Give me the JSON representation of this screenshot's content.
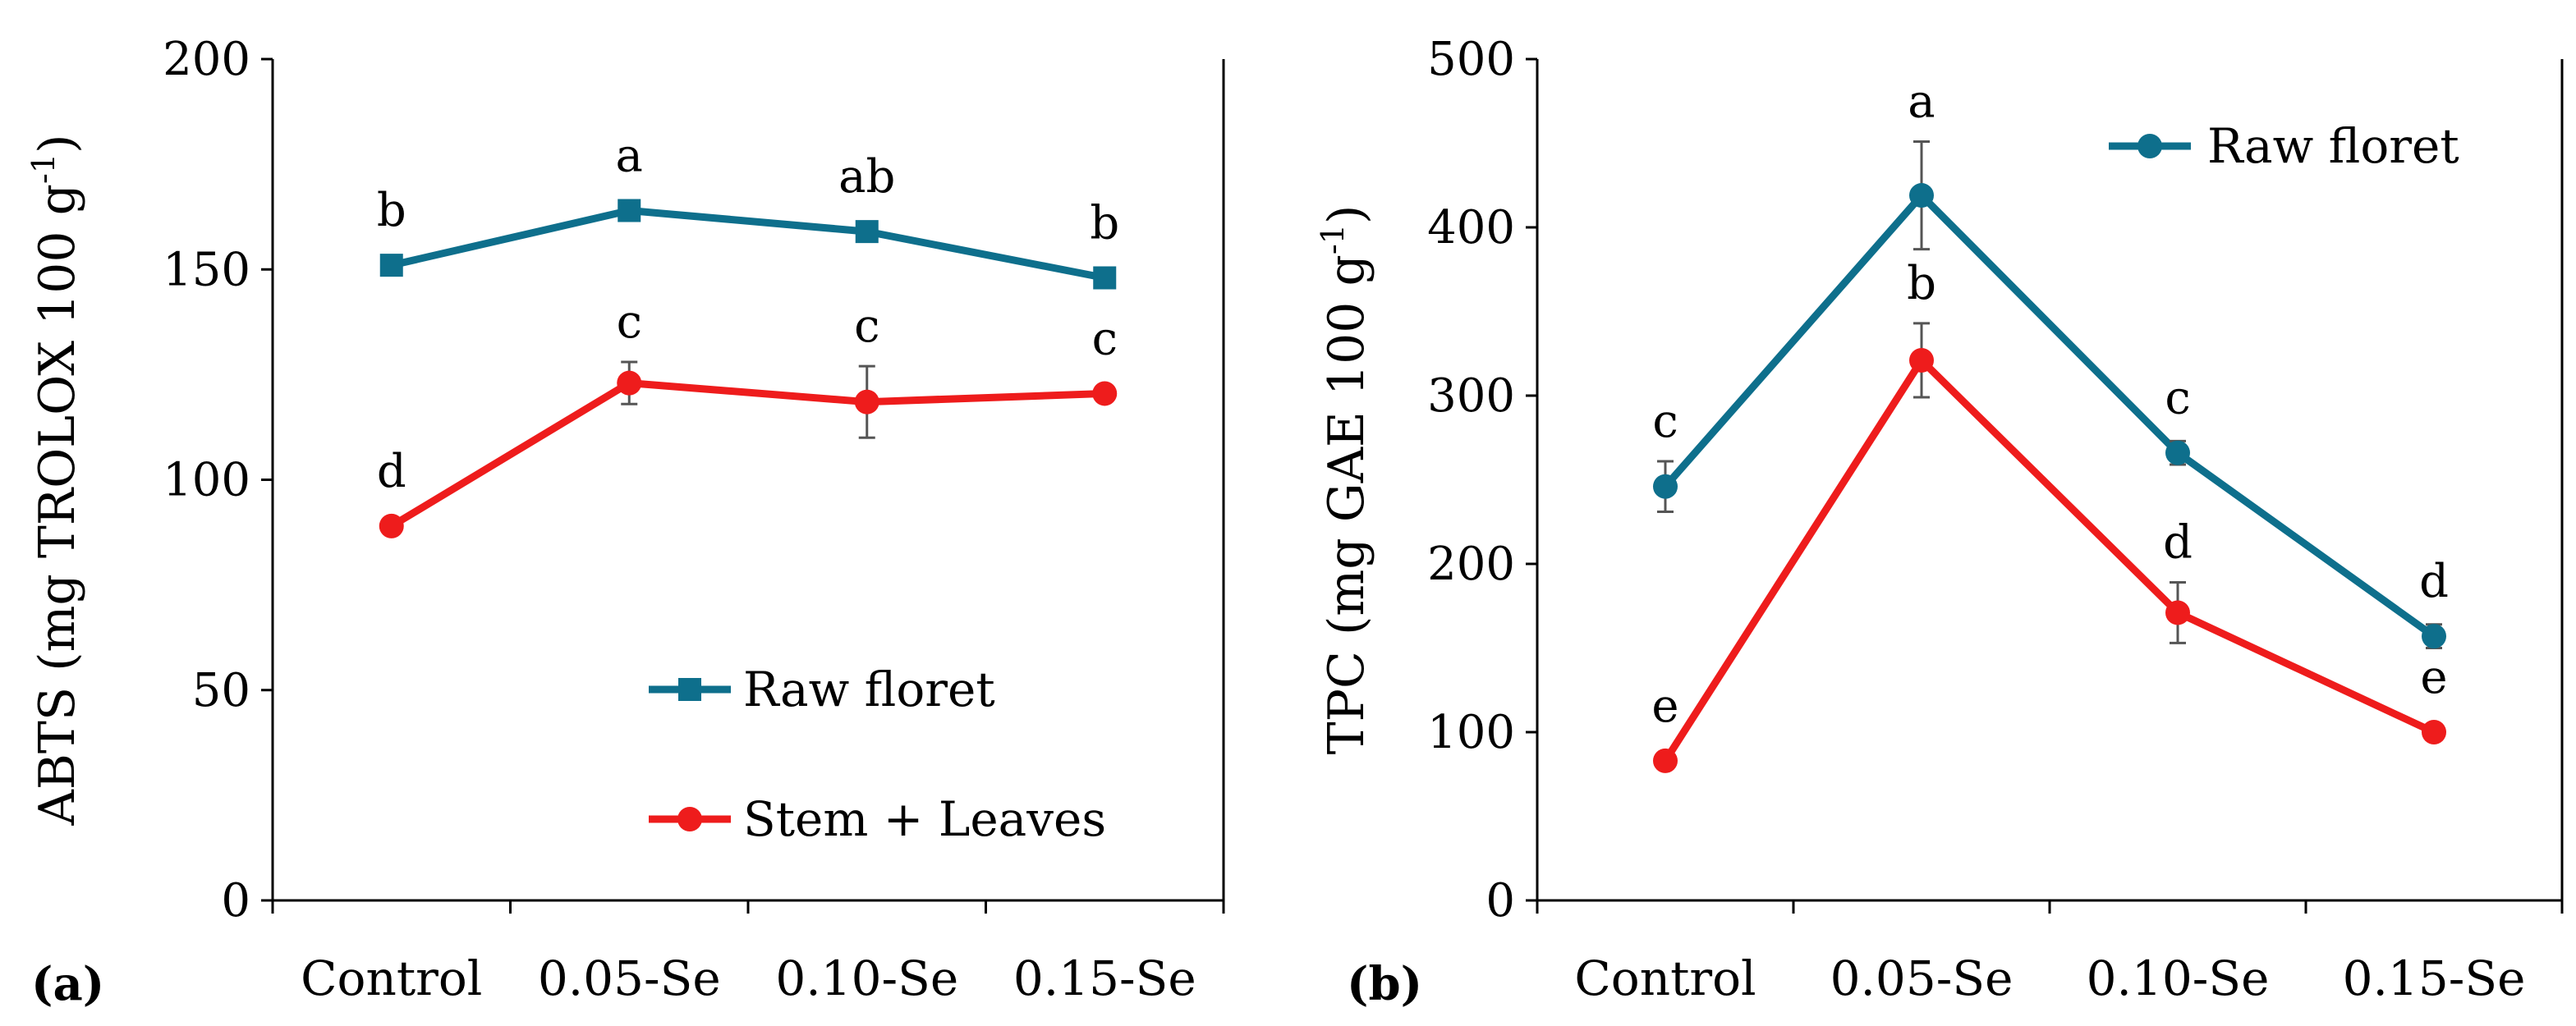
{
  "chart_data": [
    {
      "type": "line",
      "panel_label": "(a)",
      "ylabel_main": "ABTS (mg TROLOX 100 g",
      "ylabel_sup": "-1",
      "ylabel_close": ")",
      "xlabel": "",
      "ylim": [
        0,
        200
      ],
      "yticks": [
        0,
        50,
        100,
        150,
        200
      ],
      "ytick_labels": [
        "0",
        "50",
        "100",
        "150",
        "200"
      ],
      "categories": [
        "Control",
        "0.05-Se",
        "0.10-Se",
        "0.15-Se"
      ],
      "legend_position": "bottom-right",
      "series": [
        {
          "name": "Raw floret",
          "color": "#0e6f8c",
          "marker": "square",
          "values": [
            151,
            164,
            159,
            148
          ],
          "errors": [
            1.5,
            1.5,
            1.5,
            1.5
          ],
          "letters": [
            "b",
            "a",
            "ab",
            "b"
          ]
        },
        {
          "name": "Stem + Leaves",
          "color": "#ee1c1c",
          "marker": "circle",
          "values": [
            89,
            123,
            118.5,
            120.5
          ],
          "errors": [
            1,
            5,
            8.5,
            1
          ],
          "letters": [
            "d",
            "c",
            "c",
            "c"
          ]
        }
      ]
    },
    {
      "type": "line",
      "panel_label": "(b)",
      "ylabel_main": "TPC (mg GAE 100 g",
      "ylabel_sup": "-1",
      "ylabel_close": ")",
      "xlabel": "",
      "ylim": [
        0,
        500
      ],
      "yticks": [
        0,
        100,
        200,
        300,
        400,
        500
      ],
      "ytick_labels": [
        "0",
        "100",
        "200",
        "300",
        "400",
        "500"
      ],
      "categories": [
        "Control",
        "0.05-Se",
        "0.10-Se",
        "0.15-Se"
      ],
      "legend_position": "top-right",
      "series": [
        {
          "name": "Raw floret",
          "color": "#0e6f8c",
          "marker": "circle",
          "values": [
            246,
            419,
            266,
            157
          ],
          "errors": [
            15,
            32,
            7,
            7
          ],
          "letters": [
            "c",
            "a",
            "c",
            "d"
          ],
          "show_in_legend": true
        },
        {
          "name": "Stem + Leaves",
          "color": "#ee1c1c",
          "marker": "circle",
          "values": [
            83,
            321,
            171,
            100
          ],
          "errors": [
            2,
            22,
            18,
            2
          ],
          "letters": [
            "e",
            "b",
            "d",
            "e"
          ],
          "show_in_legend": false
        }
      ]
    }
  ]
}
